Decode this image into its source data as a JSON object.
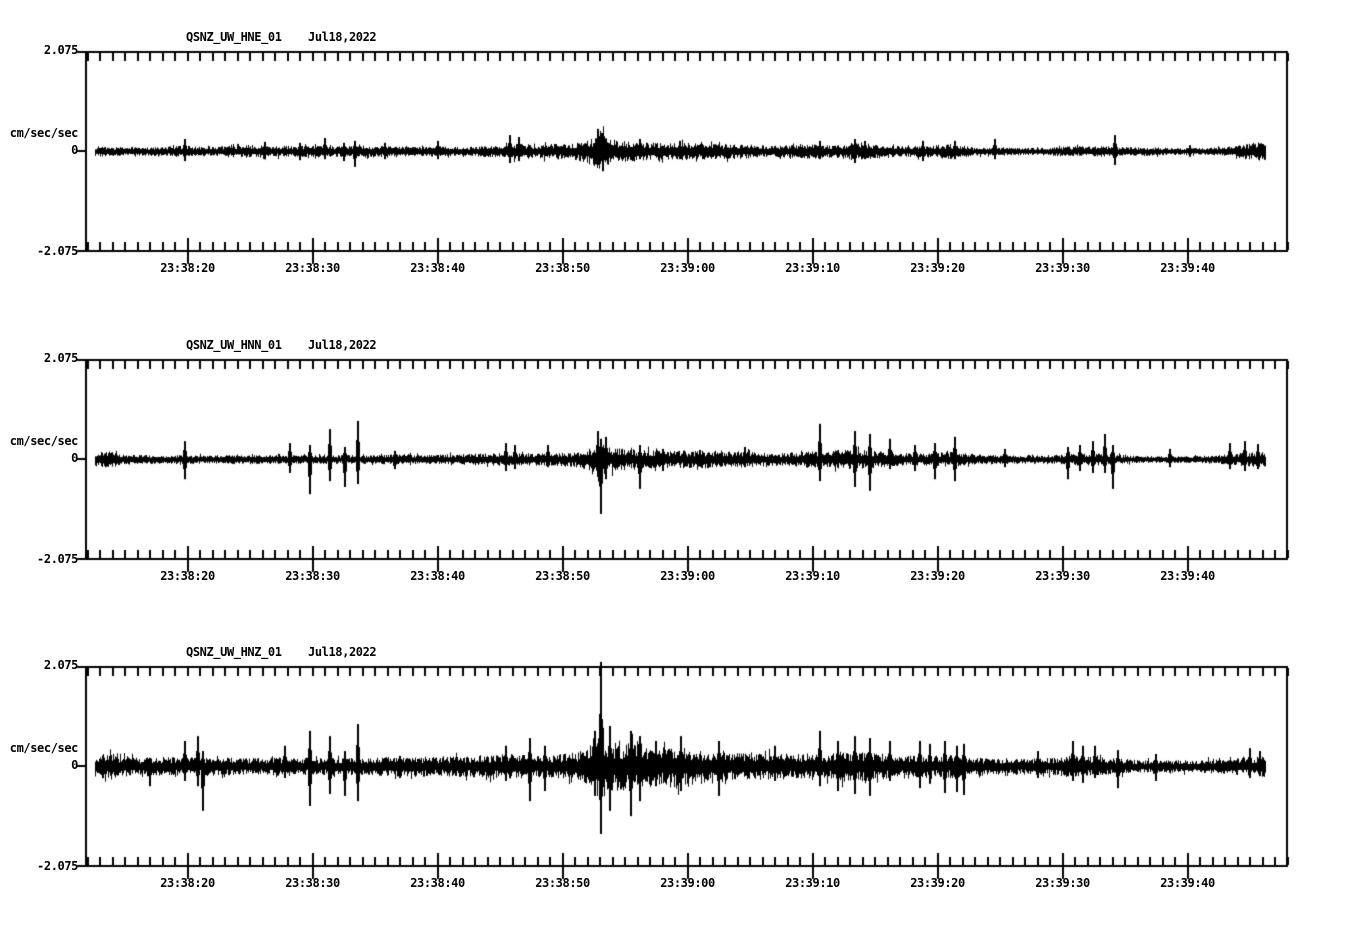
{
  "page": {
    "background": "#ffffff",
    "ink_color": "#000000"
  },
  "chart_data": [
    {
      "type": "line",
      "title": "QSNZ_UW_HNE_01",
      "date_label": "Jul18,2022",
      "ylabel": "cm/sec/sec",
      "ylim": [
        -2.075,
        2.075
      ],
      "ytick_labels": [
        "2.075",
        "0",
        "-2.075"
      ],
      "xtick_labels": [
        "23:38:20",
        "23:38:30",
        "23:38:40",
        "23:38:50",
        "23:39:00",
        "23:39:10",
        "23:39:20",
        "23:39:30",
        "23:39:40"
      ],
      "x_start_time": "23:38:12",
      "x_end_time": "23:39:48",
      "seconds_per_minor_tick": 1,
      "seconds_per_major_tick": 10,
      "envelope": [
        [
          0.6,
          0.1
        ],
        [
          2,
          0.08
        ],
        [
          6,
          0.08
        ],
        [
          7.5,
          0.12
        ],
        [
          9,
          0.09
        ],
        [
          12,
          0.12
        ],
        [
          14,
          0.12
        ],
        [
          16,
          0.1
        ],
        [
          18,
          0.12
        ],
        [
          20,
          0.1
        ],
        [
          22,
          0.12
        ],
        [
          24,
          0.1
        ],
        [
          26,
          0.08
        ],
        [
          28,
          0.1
        ],
        [
          30,
          0.08
        ],
        [
          33,
          0.12
        ],
        [
          34,
          0.17
        ],
        [
          35,
          0.12
        ],
        [
          37,
          0.15
        ],
        [
          39,
          0.17
        ],
        [
          40.5,
          0.29
        ],
        [
          41,
          0.44
        ],
        [
          41.5,
          0.29
        ],
        [
          42.5,
          0.21
        ],
        [
          44,
          0.19
        ],
        [
          46,
          0.17
        ],
        [
          48,
          0.17
        ],
        [
          50,
          0.15
        ],
        [
          52,
          0.15
        ],
        [
          54,
          0.12
        ],
        [
          56,
          0.12
        ],
        [
          58,
          0.15
        ],
        [
          60,
          0.12
        ],
        [
          61,
          0.17
        ],
        [
          63,
          0.15
        ],
        [
          65,
          0.1
        ],
        [
          67,
          0.12
        ],
        [
          69,
          0.15
        ],
        [
          71,
          0.08
        ],
        [
          73,
          0.08
        ],
        [
          75,
          0.06
        ],
        [
          77,
          0.08
        ],
        [
          79,
          0.1
        ],
        [
          81,
          0.1
        ],
        [
          83,
          0.08
        ],
        [
          85,
          0.08
        ],
        [
          87,
          0.06
        ],
        [
          89,
          0.06
        ],
        [
          91,
          0.08
        ],
        [
          92.5,
          0.15
        ],
        [
          93.5,
          0.19
        ],
        [
          94.2,
          0.17
        ]
      ],
      "spikes": [
        [
          7.8,
          0.25,
          0.21
        ],
        [
          14.2,
          0.19,
          0.17
        ],
        [
          17,
          0.17,
          0.19
        ],
        [
          19,
          0.27,
          0.17
        ],
        [
          20.5,
          0.17,
          0.21
        ],
        [
          21.4,
          0.21,
          0.33
        ],
        [
          23.8,
          0.17,
          0.17
        ],
        [
          28,
          0.21,
          0.17
        ],
        [
          33.8,
          0.33,
          0.25
        ],
        [
          34.5,
          0.29,
          0.21
        ],
        [
          40.8,
          0.46,
          0.29
        ],
        [
          41.2,
          0.37,
          0.42
        ],
        [
          44.2,
          0.25,
          0.17
        ],
        [
          47.4,
          0.21,
          0.17
        ],
        [
          58.6,
          0.21,
          0.17
        ],
        [
          61.4,
          0.25,
          0.25
        ],
        [
          62.2,
          0.21,
          0.17
        ],
        [
          66.8,
          0.21,
          0.21
        ],
        [
          69.4,
          0.21,
          0.17
        ],
        [
          72.6,
          0.25,
          0.17
        ],
        [
          82.2,
          0.33,
          0.29
        ],
        [
          88.2,
          0.12,
          0.12
        ]
      ]
    },
    {
      "type": "line",
      "title": "QSNZ_UW_HNN_01",
      "date_label": "Jul18,2022",
      "ylabel": "cm/sec/sec",
      "ylim": [
        -2.075,
        2.075
      ],
      "ytick_labels": [
        "2.075",
        "0",
        "-2.075"
      ],
      "xtick_labels": [
        "23:38:20",
        "23:38:30",
        "23:38:40",
        "23:38:50",
        "23:39:00",
        "23:39:10",
        "23:39:20",
        "23:39:30",
        "23:39:40"
      ],
      "x_start_time": "23:38:12",
      "x_end_time": "23:39:48",
      "seconds_per_minor_tick": 1,
      "seconds_per_major_tick": 10,
      "envelope": [
        [
          0.6,
          0.15
        ],
        [
          1.5,
          0.17
        ],
        [
          3,
          0.1
        ],
        [
          5,
          0.08
        ],
        [
          8,
          0.08
        ],
        [
          11,
          0.08
        ],
        [
          14,
          0.08
        ],
        [
          17,
          0.08
        ],
        [
          20,
          0.08
        ],
        [
          23,
          0.08
        ],
        [
          25,
          0.1
        ],
        [
          27,
          0.08
        ],
        [
          29,
          0.1
        ],
        [
          31,
          0.12
        ],
        [
          33,
          0.12
        ],
        [
          35,
          0.12
        ],
        [
          37,
          0.12
        ],
        [
          39,
          0.15
        ],
        [
          40.5,
          0.25
        ],
        [
          41,
          0.37
        ],
        [
          41.5,
          0.25
        ],
        [
          43,
          0.21
        ],
        [
          45,
          0.19
        ],
        [
          47,
          0.17
        ],
        [
          49,
          0.17
        ],
        [
          50,
          0.19
        ],
        [
          51,
          0.17
        ],
        [
          53,
          0.15
        ],
        [
          55,
          0.12
        ],
        [
          57,
          0.15
        ],
        [
          59,
          0.17
        ],
        [
          60,
          0.19
        ],
        [
          62,
          0.19
        ],
        [
          63,
          0.17
        ],
        [
          64,
          0.15
        ],
        [
          65,
          0.12
        ],
        [
          67,
          0.12
        ],
        [
          69,
          0.15
        ],
        [
          71,
          0.1
        ],
        [
          73,
          0.08
        ],
        [
          75,
          0.08
        ],
        [
          77,
          0.08
        ],
        [
          79,
          0.12
        ],
        [
          80.5,
          0.12
        ],
        [
          82,
          0.1
        ],
        [
          84,
          0.06
        ],
        [
          86,
          0.06
        ],
        [
          88,
          0.06
        ],
        [
          90,
          0.08
        ],
        [
          91.5,
          0.1
        ],
        [
          93,
          0.15
        ],
        [
          94.2,
          0.14
        ]
      ],
      "spikes": [
        [
          7.8,
          0.37,
          0.42
        ],
        [
          16.2,
          0.33,
          0.29
        ],
        [
          17.8,
          0.29,
          0.73
        ],
        [
          19.4,
          0.62,
          0.46
        ],
        [
          20.6,
          0.25,
          0.58
        ],
        [
          21.6,
          0.79,
          0.52
        ],
        [
          24.6,
          0.17,
          0.21
        ],
        [
          33.5,
          0.33,
          0.25
        ],
        [
          34.2,
          0.29,
          0.21
        ],
        [
          36.8,
          0.29,
          0.17
        ],
        [
          40.8,
          0.58,
          0.37
        ],
        [
          41.1,
          0.42,
          1.14
        ],
        [
          41.5,
          0.46,
          0.42
        ],
        [
          44.2,
          0.29,
          0.62
        ],
        [
          46,
          0.21,
          0.25
        ],
        [
          49,
          0.19,
          0.15
        ],
        [
          52.6,
          0.25,
          0.17
        ],
        [
          58.6,
          0.73,
          0.46
        ],
        [
          61.4,
          0.58,
          0.58
        ],
        [
          62.6,
          0.52,
          0.66
        ],
        [
          64.2,
          0.42,
          0.21
        ],
        [
          66.2,
          0.29,
          0.25
        ],
        [
          67.8,
          0.33,
          0.42
        ],
        [
          69.4,
          0.46,
          0.46
        ],
        [
          73.4,
          0.21,
          0.17
        ],
        [
          78.4,
          0.25,
          0.42
        ],
        [
          79.4,
          0.29,
          0.25
        ],
        [
          80.4,
          0.37,
          0.29
        ],
        [
          81.4,
          0.52,
          0.29
        ],
        [
          82,
          0.29,
          0.62
        ],
        [
          86.6,
          0.21,
          0.17
        ],
        [
          91.4,
          0.33,
          0.21
        ],
        [
          92.6,
          0.37,
          0.25
        ],
        [
          93.6,
          0.31,
          0.21
        ]
      ]
    },
    {
      "type": "line",
      "title": "QSNZ_UW_HNZ_01",
      "date_label": "Jul18,2022",
      "ylabel": "cm/sec/sec",
      "ylim": [
        -2.075,
        2.075
      ],
      "ytick_labels": [
        "2.075",
        "0",
        "-2.075"
      ],
      "xtick_labels": [
        "23:38:20",
        "23:38:30",
        "23:38:40",
        "23:38:50",
        "23:39:00",
        "23:39:10",
        "23:39:20",
        "23:39:30",
        "23:39:40"
      ],
      "x_start_time": "23:38:12",
      "x_end_time": "23:39:48",
      "seconds_per_minor_tick": 1,
      "seconds_per_major_tick": 10,
      "envelope": [
        [
          0.6,
          0.21
        ],
        [
          1,
          0.25
        ],
        [
          2,
          0.27
        ],
        [
          3,
          0.21
        ],
        [
          4,
          0.17
        ],
        [
          6,
          0.19
        ],
        [
          8,
          0.17
        ],
        [
          10,
          0.19
        ],
        [
          12,
          0.17
        ],
        [
          14,
          0.17
        ],
        [
          16,
          0.19
        ],
        [
          18,
          0.17
        ],
        [
          20,
          0.17
        ],
        [
          22,
          0.17
        ],
        [
          24,
          0.19
        ],
        [
          26,
          0.21
        ],
        [
          28,
          0.19
        ],
        [
          30,
          0.21
        ],
        [
          32,
          0.23
        ],
        [
          34,
          0.25
        ],
        [
          35,
          0.23
        ],
        [
          36,
          0.21
        ],
        [
          37,
          0.23
        ],
        [
          38,
          0.25
        ],
        [
          39,
          0.29
        ],
        [
          40,
          0.37
        ],
        [
          40.5,
          0.52
        ],
        [
          41,
          0.73
        ],
        [
          41.5,
          0.58
        ],
        [
          42,
          0.52
        ],
        [
          43,
          0.46
        ],
        [
          44,
          0.52
        ],
        [
          45,
          0.42
        ],
        [
          46,
          0.37
        ],
        [
          47,
          0.46
        ],
        [
          48,
          0.37
        ],
        [
          49,
          0.31
        ],
        [
          50,
          0.37
        ],
        [
          51,
          0.31
        ],
        [
          52,
          0.27
        ],
        [
          53,
          0.25
        ],
        [
          54,
          0.27
        ],
        [
          55,
          0.25
        ],
        [
          56,
          0.27
        ],
        [
          57,
          0.25
        ],
        [
          58,
          0.27
        ],
        [
          59,
          0.25
        ],
        [
          60,
          0.29
        ],
        [
          61,
          0.33
        ],
        [
          62,
          0.31
        ],
        [
          63,
          0.29
        ],
        [
          64,
          0.25
        ],
        [
          65,
          0.21
        ],
        [
          66,
          0.21
        ],
        [
          67,
          0.25
        ],
        [
          68,
          0.21
        ],
        [
          69,
          0.23
        ],
        [
          70,
          0.21
        ],
        [
          71,
          0.17
        ],
        [
          72,
          0.17
        ],
        [
          73,
          0.15
        ],
        [
          74,
          0.15
        ],
        [
          75,
          0.15
        ],
        [
          76,
          0.17
        ],
        [
          77,
          0.17
        ],
        [
          78,
          0.21
        ],
        [
          79,
          0.21
        ],
        [
          80,
          0.19
        ],
        [
          81,
          0.19
        ],
        [
          82,
          0.17
        ],
        [
          83,
          0.15
        ],
        [
          84,
          0.12
        ],
        [
          85,
          0.12
        ],
        [
          86,
          0.12
        ],
        [
          87,
          0.12
        ],
        [
          88,
          0.12
        ],
        [
          89,
          0.12
        ],
        [
          90,
          0.15
        ],
        [
          91,
          0.15
        ],
        [
          92,
          0.17
        ],
        [
          93,
          0.19
        ],
        [
          94.2,
          0.21
        ]
      ],
      "spikes": [
        [
          5,
          0.17,
          0.42
        ],
        [
          7.8,
          0.52,
          0.31
        ],
        [
          8.8,
          0.62,
          0.42
        ],
        [
          9.2,
          0.31,
          0.93
        ],
        [
          15.8,
          0.42,
          0.25
        ],
        [
          17.8,
          0.73,
          0.83
        ],
        [
          19.4,
          0.62,
          0.58
        ],
        [
          20.6,
          0.31,
          0.62
        ],
        [
          21.6,
          0.87,
          0.73
        ],
        [
          25,
          0.21,
          0.25
        ],
        [
          33.5,
          0.42,
          0.31
        ],
        [
          35.4,
          0.58,
          0.73
        ],
        [
          36.6,
          0.42,
          0.52
        ],
        [
          40.6,
          0.73,
          0.62
        ],
        [
          41.1,
          2.16,
          1.41
        ],
        [
          41.8,
          0.83,
          0.93
        ],
        [
          43.5,
          0.73,
          1.04
        ],
        [
          44.2,
          0.62,
          0.73
        ],
        [
          45.5,
          0.52,
          0.42
        ],
        [
          47.5,
          0.62,
          0.52
        ],
        [
          50.5,
          0.52,
          0.62
        ],
        [
          55,
          0.42,
          0.31
        ],
        [
          58.6,
          0.73,
          0.42
        ],
        [
          60,
          0.52,
          0.52
        ],
        [
          61.4,
          0.62,
          0.58
        ],
        [
          62.6,
          0.58,
          0.62
        ],
        [
          64.2,
          0.52,
          0.31
        ],
        [
          66.6,
          0.52,
          0.46
        ],
        [
          67.4,
          0.46,
          0.37
        ],
        [
          68.6,
          0.52,
          0.56
        ],
        [
          69.6,
          0.42,
          0.54
        ],
        [
          70.1,
          0.46,
          0.6
        ],
        [
          76,
          0.31,
          0.25
        ],
        [
          78.8,
          0.52,
          0.31
        ],
        [
          79.6,
          0.42,
          0.35
        ],
        [
          80.6,
          0.42,
          0.25
        ],
        [
          82.4,
          0.33,
          0.46
        ],
        [
          85.5,
          0.25,
          0.31
        ],
        [
          93,
          0.37,
          0.25
        ],
        [
          93.8,
          0.31,
          0.21
        ]
      ]
    }
  ]
}
